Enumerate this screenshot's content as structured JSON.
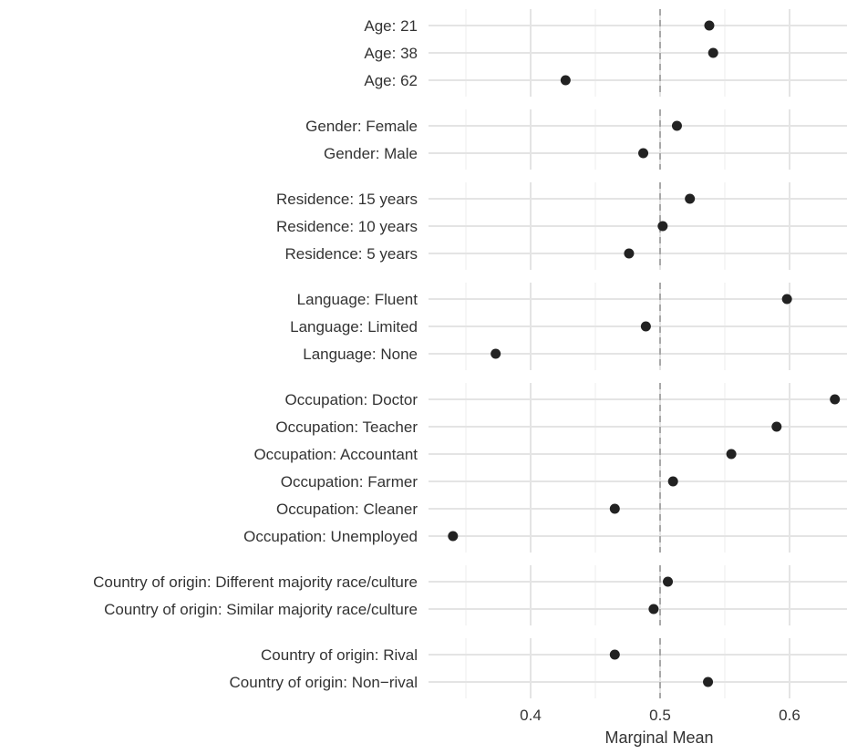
{
  "chart_data": {
    "type": "scatter",
    "xlabel": "Marginal Mean",
    "ylabel": "",
    "xlim": [
      0.33,
      0.645
    ],
    "xticks": [
      0.4,
      0.5,
      0.6
    ],
    "xtick_labels": [
      "0.4",
      "0.5",
      "0.6"
    ],
    "reference_line": 0.5,
    "grid": true,
    "point_color": "#222222",
    "reference_color": "#9a9a9a",
    "groups": [
      {
        "points": [
          {
            "label": "Age: 21",
            "value": 0.538
          },
          {
            "label": "Age: 38",
            "value": 0.541
          },
          {
            "label": "Age: 62",
            "value": 0.427
          }
        ]
      },
      {
        "points": [
          {
            "label": "Gender: Female",
            "value": 0.513
          },
          {
            "label": "Gender: Male",
            "value": 0.487
          }
        ]
      },
      {
        "points": [
          {
            "label": "Residence: 15 years",
            "value": 0.523
          },
          {
            "label": "Residence: 10 years",
            "value": 0.502
          },
          {
            "label": "Residence: 5 years",
            "value": 0.476
          }
        ]
      },
      {
        "points": [
          {
            "label": "Language: Fluent",
            "value": 0.598
          },
          {
            "label": "Language: Limited",
            "value": 0.489
          },
          {
            "label": "Language: None",
            "value": 0.373
          }
        ]
      },
      {
        "points": [
          {
            "label": "Occupation: Doctor",
            "value": 0.635
          },
          {
            "label": "Occupation: Teacher",
            "value": 0.59
          },
          {
            "label": "Occupation: Accountant",
            "value": 0.555
          },
          {
            "label": "Occupation: Farmer",
            "value": 0.51
          },
          {
            "label": "Occupation: Cleaner",
            "value": 0.465
          },
          {
            "label": "Occupation: Unemployed",
            "value": 0.34
          }
        ]
      },
      {
        "points": [
          {
            "label": "Country of origin: Different majority race/culture",
            "value": 0.506
          },
          {
            "label": "Country of origin: Similar majority race/culture",
            "value": 0.495
          }
        ]
      },
      {
        "points": [
          {
            "label": "Country of origin: Rival",
            "value": 0.465
          },
          {
            "label": "Country of origin: Non−rival",
            "value": 0.537
          }
        ]
      }
    ]
  }
}
